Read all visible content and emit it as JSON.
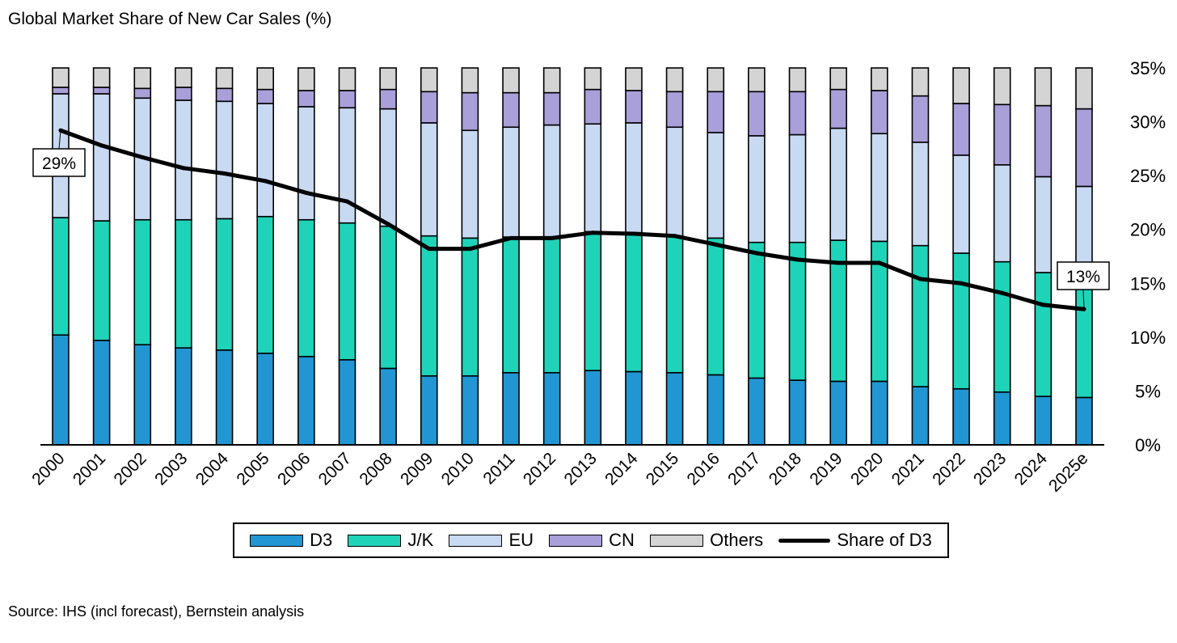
{
  "title": "Global Market Share of New Car Sales (%)",
  "source": "Source: IHS (incl forecast), Bernstein analysis",
  "chart_data": {
    "type": "bar",
    "stacked": true,
    "categories": [
      "2000",
      "2001",
      "2002",
      "2003",
      "2004",
      "2005",
      "2006",
      "2007",
      "2008",
      "2009",
      "2010",
      "2011",
      "2012",
      "2013",
      "2014",
      "2015",
      "2016",
      "2017",
      "2018",
      "2019",
      "2020",
      "2021",
      "2022",
      "2023",
      "2024",
      "2025e"
    ],
    "series": [
      {
        "name": "D3",
        "color": "#2196d3",
        "values": [
          10.2,
          9.7,
          9.3,
          9.0,
          8.8,
          8.5,
          8.2,
          7.9,
          7.1,
          6.4,
          6.4,
          6.7,
          6.7,
          6.9,
          6.8,
          6.7,
          6.5,
          6.2,
          6.0,
          5.9,
          5.9,
          5.4,
          5.2,
          4.9,
          4.5,
          4.4
        ]
      },
      {
        "name": "J/K",
        "color": "#1ed3b8",
        "values": [
          10.9,
          11.1,
          11.6,
          11.9,
          12.2,
          12.7,
          12.7,
          12.7,
          13.2,
          13.0,
          12.8,
          12.6,
          12.6,
          12.9,
          12.9,
          12.7,
          12.7,
          12.6,
          12.8,
          13.1,
          13.0,
          13.1,
          12.6,
          12.1,
          11.5,
          11.6
        ]
      },
      {
        "name": "EU",
        "color": "#c8d9f2",
        "values": [
          11.5,
          11.8,
          11.3,
          11.1,
          10.9,
          10.5,
          10.5,
          10.7,
          10.9,
          10.5,
          10.0,
          10.2,
          10.4,
          10.0,
          10.2,
          10.1,
          9.8,
          9.9,
          10.0,
          10.4,
          10.0,
          9.6,
          9.1,
          9.0,
          8.9,
          8.0
        ]
      },
      {
        "name": "CN",
        "color": "#a99fd9",
        "values": [
          0.6,
          0.6,
          0.9,
          1.2,
          1.2,
          1.3,
          1.5,
          1.6,
          1.8,
          2.9,
          3.5,
          3.2,
          3.0,
          3.2,
          3.0,
          3.3,
          3.8,
          4.1,
          4.0,
          3.6,
          4.0,
          4.3,
          4.8,
          5.6,
          6.6,
          7.2
        ]
      },
      {
        "name": "Others",
        "color": "#d4d4d4",
        "values": [
          1.8,
          1.8,
          1.9,
          1.8,
          1.9,
          2.0,
          2.1,
          2.1,
          2.0,
          2.2,
          2.3,
          2.3,
          2.3,
          2.0,
          2.1,
          2.2,
          2.2,
          2.2,
          2.2,
          2.0,
          2.1,
          2.6,
          3.3,
          3.4,
          3.5,
          3.8
        ]
      }
    ],
    "line": {
      "name": "Share of D3",
      "values": [
        29.2,
        27.8,
        26.7,
        25.7,
        25.2,
        24.5,
        23.4,
        22.6,
        20.5,
        18.2,
        18.2,
        19.2,
        19.2,
        19.7,
        19.6,
        19.4,
        18.6,
        17.8,
        17.2,
        16.9,
        16.9,
        15.4,
        15.0,
        14.1,
        13.0,
        12.6
      ]
    },
    "annotations": [
      {
        "label": "29%",
        "index": 0
      },
      {
        "label": "13%",
        "index": 25
      }
    ],
    "ylim": [
      0,
      35
    ],
    "yticks": [
      0,
      5,
      10,
      15,
      20,
      25,
      30,
      35
    ],
    "ytick_labels": [
      "0%",
      "5%",
      "10%",
      "15%",
      "20%",
      "25%",
      "30%",
      "35%"
    ],
    "y_axis_side": "right",
    "grid": false,
    "legend_placement": "bottom"
  },
  "legend": {
    "d3": "D3",
    "jk": "J/K",
    "eu": "EU",
    "cn": "CN",
    "others": "Others",
    "share": "Share of D3"
  }
}
